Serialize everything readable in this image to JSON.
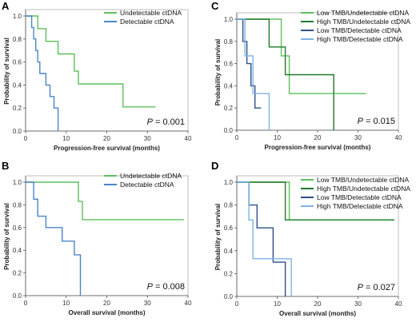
{
  "colors": {
    "undetectable": "#5cc05c",
    "detectable": "#4a86c8",
    "low_tmb_undetectable": "#5cc05c",
    "high_tmb_undetectable": "#1e7a2a",
    "low_tmb_detectable": "#2c4f8a",
    "high_tmb_detectable": "#7fb3e6"
  },
  "chart_data": [
    {
      "panel": "A",
      "type": "line",
      "step": true,
      "xlabel": "Progression-free survival (months)",
      "ylabel": "Probability of survival",
      "xlim": [
        0,
        40
      ],
      "ylim": [
        0,
        1.0
      ],
      "xticks": [
        "0",
        "10",
        "20",
        "30",
        "40"
      ],
      "yticks": [
        "0.0",
        "0.2",
        "0.4",
        "0.6",
        "0.8",
        "1.0"
      ],
      "pvalue": "P = 0.001",
      "legend_position": "top-right",
      "series": [
        {
          "name": "Undetectable ctDNA",
          "color_key": "undetectable",
          "x": [
            0,
            3,
            5,
            8,
            12,
            13,
            24,
            32
          ],
          "y": [
            1.0,
            0.89,
            0.78,
            0.67,
            0.52,
            0.41,
            0.21,
            0.21
          ]
        },
        {
          "name": "Detectable ctDNA",
          "color_key": "detectable",
          "x": [
            0,
            1.5,
            2,
            2.5,
            3,
            3.5,
            5,
            6,
            7,
            8
          ],
          "y": [
            1.0,
            0.9,
            0.8,
            0.7,
            0.6,
            0.5,
            0.4,
            0.3,
            0.2,
            0.0
          ]
        }
      ]
    },
    {
      "panel": "C",
      "type": "line",
      "step": true,
      "xlabel": "Progression-free survival (months)",
      "ylabel": "Probability of survival",
      "xlim": [
        0,
        40
      ],
      "ylim": [
        0,
        1.0
      ],
      "xticks": [
        "0",
        "10",
        "20",
        "30",
        "40"
      ],
      "yticks": [
        "0.0",
        "0.2",
        "0.4",
        "0.6",
        "0.8",
        "1.0"
      ],
      "pvalue": "P = 0.015",
      "legend_position": "top-right",
      "series": [
        {
          "name": "Low TMB/Undetectable ctDNA",
          "color_key": "low_tmb_undetectable",
          "x": [
            0,
            3,
            11,
            13,
            32
          ],
          "y": [
            1.0,
            1.0,
            0.67,
            0.33,
            0.33
          ]
        },
        {
          "name": "High TMB/Undetectable ctDNA",
          "color_key": "high_tmb_undetectable",
          "x": [
            0,
            8,
            12,
            24
          ],
          "y": [
            1.0,
            0.75,
            0.5,
            0.0
          ]
        },
        {
          "name": "Low TMB/Detectable ctDNA",
          "color_key": "low_tmb_detectable",
          "x": [
            0,
            1.5,
            2.5,
            3.5,
            4.5,
            6
          ],
          "y": [
            1.0,
            0.8,
            0.6,
            0.4,
            0.2,
            0.2
          ]
        },
        {
          "name": "High TMB/Detectable ctDNA",
          "color_key": "high_tmb_detectable",
          "x": [
            0,
            2,
            4,
            8
          ],
          "y": [
            1.0,
            0.67,
            0.33,
            0.0
          ]
        }
      ]
    },
    {
      "panel": "B",
      "type": "line",
      "step": true,
      "xlabel": "Overall survival (months)",
      "ylabel": "Probability of survival",
      "xlim": [
        0,
        40
      ],
      "ylim": [
        0,
        1.0
      ],
      "xticks": [
        "0",
        "10",
        "20",
        "30",
        "40"
      ],
      "yticks": [
        "0.0",
        "0.2",
        "0.4",
        "0.6",
        "0.8",
        "1.0"
      ],
      "pvalue": "P = 0.008",
      "legend_position": "top-right",
      "series": [
        {
          "name": "Undetectable ctDNA",
          "color_key": "undetectable",
          "x": [
            0,
            13,
            14,
            39
          ],
          "y": [
            1.0,
            0.83,
            0.67,
            0.67
          ]
        },
        {
          "name": "Detectable ctDNA",
          "color_key": "detectable",
          "x": [
            0,
            2,
            3,
            5,
            9,
            12,
            13.5
          ],
          "y": [
            1.0,
            0.85,
            0.7,
            0.6,
            0.48,
            0.36,
            0.0
          ]
        }
      ]
    },
    {
      "panel": "D",
      "type": "line",
      "step": true,
      "xlabel": "Overall survival (months)",
      "ylabel": "Probability of survival",
      "xlim": [
        0,
        40
      ],
      "ylim": [
        0,
        1.0
      ],
      "xticks": [
        "0",
        "10",
        "20",
        "30",
        "40"
      ],
      "yticks": [
        "0.0",
        "0.2",
        "0.4",
        "0.6",
        "0.8",
        "1.0"
      ],
      "pvalue": "P = 0.027",
      "legend_position": "top-right",
      "series": [
        {
          "name": "Low TMB/Undetectable ctDNA",
          "color_key": "low_tmb_undetectable",
          "x": [
            0,
            13,
            39
          ],
          "y": [
            1.0,
            0.67,
            0.67
          ]
        },
        {
          "name": "High TMB/Undetectable ctDNA",
          "color_key": "high_tmb_undetectable",
          "x": [
            0,
            12,
            39
          ],
          "y": [
            1.0,
            0.67,
            0.67
          ]
        },
        {
          "name": "Low TMB/Detectable ctDNA",
          "color_key": "low_tmb_detectable",
          "x": [
            0,
            3,
            5,
            9,
            12
          ],
          "y": [
            1.0,
            0.8,
            0.6,
            0.3,
            0.0
          ]
        },
        {
          "name": "High TMB/Detectable ctDNA",
          "color_key": "high_tmb_detectable",
          "x": [
            0,
            3,
            4,
            13.5
          ],
          "y": [
            1.0,
            0.67,
            0.33,
            0.0
          ]
        }
      ]
    }
  ]
}
